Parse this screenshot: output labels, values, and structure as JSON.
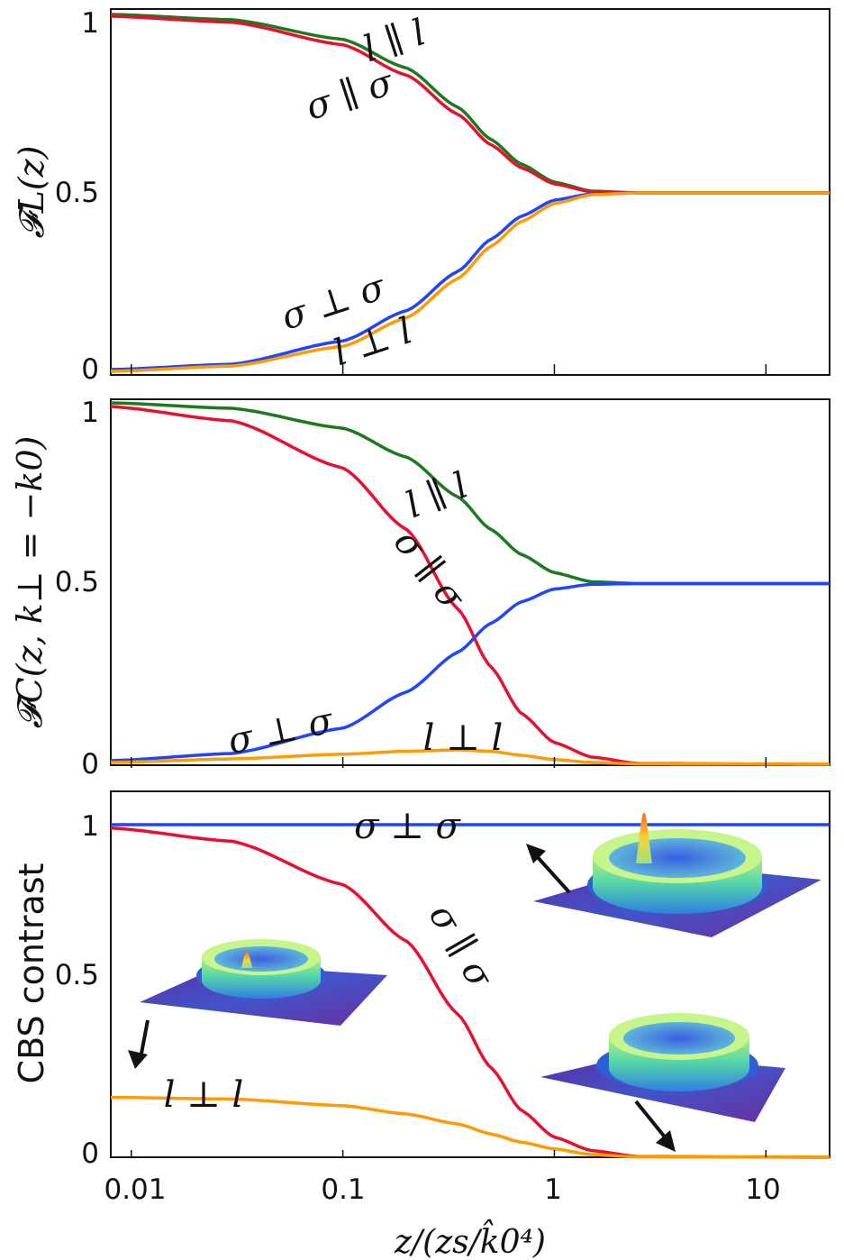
{
  "chart_data": [
    {
      "type": "line",
      "panel": "top",
      "ylabel": "𝓕L(z)",
      "xscale": "log",
      "xlim": [
        0.008,
        20
      ],
      "ylim": [
        0,
        1
      ],
      "yticks": [
        "0",
        "0.5",
        "1"
      ],
      "series": [
        {
          "name": "l ∥ l",
          "color": "#1b7a1b",
          "points": [
            [
              0.008,
              1.0
            ],
            [
              0.03,
              0.985
            ],
            [
              0.1,
              0.93
            ],
            [
              0.2,
              0.85
            ],
            [
              0.35,
              0.74
            ],
            [
              0.5,
              0.65
            ],
            [
              0.7,
              0.58
            ],
            [
              1.0,
              0.53
            ],
            [
              1.5,
              0.505
            ],
            [
              2.5,
              0.5
            ],
            [
              20,
              0.5
            ]
          ]
        },
        {
          "name": "σ ∥ σ",
          "color": "#e8102e",
          "points": [
            [
              0.008,
              0.995
            ],
            [
              0.03,
              0.978
            ],
            [
              0.1,
              0.915
            ],
            [
              0.2,
              0.83
            ],
            [
              0.35,
              0.72
            ],
            [
              0.5,
              0.635
            ],
            [
              0.7,
              0.57
            ],
            [
              1.0,
              0.525
            ],
            [
              1.5,
              0.503
            ],
            [
              2.5,
              0.5
            ],
            [
              20,
              0.5
            ]
          ]
        },
        {
          "name": "σ ⊥ σ",
          "color": "#1f45ff",
          "points": [
            [
              0.008,
              0.005
            ],
            [
              0.03,
              0.02
            ],
            [
              0.1,
              0.085
            ],
            [
              0.2,
              0.17
            ],
            [
              0.35,
              0.28
            ],
            [
              0.5,
              0.37
            ],
            [
              0.7,
              0.435
            ],
            [
              1.0,
              0.48
            ],
            [
              1.5,
              0.497
            ],
            [
              2.5,
              0.5
            ],
            [
              20,
              0.5
            ]
          ]
        },
        {
          "name": "l ⊥ l",
          "color": "#ff9a00",
          "points": [
            [
              0.008,
              0.0
            ],
            [
              0.03,
              0.015
            ],
            [
              0.1,
              0.07
            ],
            [
              0.2,
              0.15
            ],
            [
              0.35,
              0.26
            ],
            [
              0.5,
              0.35
            ],
            [
              0.7,
              0.42
            ],
            [
              1.0,
              0.47
            ],
            [
              1.5,
              0.495
            ],
            [
              2.5,
              0.5
            ],
            [
              20,
              0.5
            ]
          ]
        }
      ],
      "labels": [
        "l ∥ l",
        "σ ∥ σ",
        "σ ⊥ σ",
        "l ⊥ l"
      ]
    },
    {
      "type": "line",
      "panel": "middle",
      "ylabel": "𝓕C(z, k⊥ = −k0)",
      "xscale": "log",
      "xlim": [
        0.008,
        20
      ],
      "ylim": [
        0,
        1
      ],
      "yticks": [
        "0",
        "0.5",
        "1"
      ],
      "series": [
        {
          "name": "l ∥ l",
          "color": "#1b7a1b",
          "points": [
            [
              0.008,
              1.0
            ],
            [
              0.03,
              0.985
            ],
            [
              0.1,
              0.93
            ],
            [
              0.2,
              0.85
            ],
            [
              0.35,
              0.74
            ],
            [
              0.5,
              0.65
            ],
            [
              0.7,
              0.58
            ],
            [
              1.0,
              0.53
            ],
            [
              1.5,
              0.505
            ],
            [
              2.5,
              0.5
            ],
            [
              20,
              0.5
            ]
          ]
        },
        {
          "name": "σ ∥ σ",
          "color": "#e8102e",
          "points": [
            [
              0.008,
              0.99
            ],
            [
              0.03,
              0.95
            ],
            [
              0.1,
              0.82
            ],
            [
              0.2,
              0.65
            ],
            [
              0.35,
              0.43
            ],
            [
              0.5,
              0.27
            ],
            [
              0.7,
              0.14
            ],
            [
              1.0,
              0.06
            ],
            [
              1.5,
              0.02
            ],
            [
              2.5,
              0.002
            ],
            [
              20,
              0.0
            ]
          ]
        },
        {
          "name": "σ ⊥ σ",
          "color": "#1f45ff",
          "points": [
            [
              0.008,
              0.01
            ],
            [
              0.03,
              0.03
            ],
            [
              0.1,
              0.1
            ],
            [
              0.2,
              0.2
            ],
            [
              0.35,
              0.31
            ],
            [
              0.5,
              0.39
            ],
            [
              0.7,
              0.45
            ],
            [
              1.0,
              0.485
            ],
            [
              1.5,
              0.498
            ],
            [
              2.5,
              0.5
            ],
            [
              20,
              0.5
            ]
          ]
        },
        {
          "name": "l ⊥ l",
          "color": "#ff9a00",
          "points": [
            [
              0.008,
              0.005
            ],
            [
              0.03,
              0.015
            ],
            [
              0.1,
              0.028
            ],
            [
              0.2,
              0.036
            ],
            [
              0.35,
              0.04
            ],
            [
              0.5,
              0.036
            ],
            [
              0.7,
              0.025
            ],
            [
              1.0,
              0.013
            ],
            [
              1.5,
              0.005
            ],
            [
              2.5,
              0.001
            ],
            [
              20,
              0.0
            ]
          ]
        }
      ],
      "labels": [
        "l ∥ l",
        "σ ∥ σ",
        "σ ⊥ σ",
        "l ⊥ l"
      ]
    },
    {
      "type": "line",
      "panel": "bottom",
      "ylabel": "CBS contrast",
      "xlabel": "z/(zs/k̂0⁴)",
      "xscale": "log",
      "xlim": [
        0.008,
        20
      ],
      "ylim": [
        0,
        1
      ],
      "yticks": [
        "0",
        "0.5",
        "1"
      ],
      "xticks": [
        "0.01",
        "0.1",
        "1",
        "10"
      ],
      "xtick_values": [
        0.01,
        0.1,
        1,
        10
      ],
      "series": [
        {
          "name": "σ ⊥ σ",
          "color": "#1f45ff",
          "points": [
            [
              0.008,
              1.0
            ],
            [
              20,
              1.0
            ]
          ]
        },
        {
          "name": "σ ∥ σ",
          "color": "#e8102e",
          "points": [
            [
              0.008,
              0.99
            ],
            [
              0.03,
              0.95
            ],
            [
              0.1,
              0.82
            ],
            [
              0.2,
              0.65
            ],
            [
              0.35,
              0.43
            ],
            [
              0.5,
              0.27
            ],
            [
              0.7,
              0.14
            ],
            [
              1.0,
              0.06
            ],
            [
              1.5,
              0.02
            ],
            [
              2.5,
              0.002
            ],
            [
              20,
              0.0
            ]
          ]
        },
        {
          "name": "l ⊥ l",
          "color": "#ff9a00",
          "points": [
            [
              0.008,
              0.18
            ],
            [
              0.03,
              0.175
            ],
            [
              0.1,
              0.155
            ],
            [
              0.2,
              0.13
            ],
            [
              0.35,
              0.1
            ],
            [
              0.5,
              0.07
            ],
            [
              0.7,
              0.045
            ],
            [
              1.0,
              0.025
            ],
            [
              1.5,
              0.008
            ],
            [
              2.5,
              0.001
            ],
            [
              20,
              0.0
            ]
          ]
        }
      ],
      "labels": [
        "σ ⊥ σ",
        "σ ∥ σ",
        "l ⊥ l"
      ],
      "insets": [
        "peaked-ring-surface",
        "small-peak-ring-surface",
        "ring-surface-no-peak"
      ]
    }
  ]
}
